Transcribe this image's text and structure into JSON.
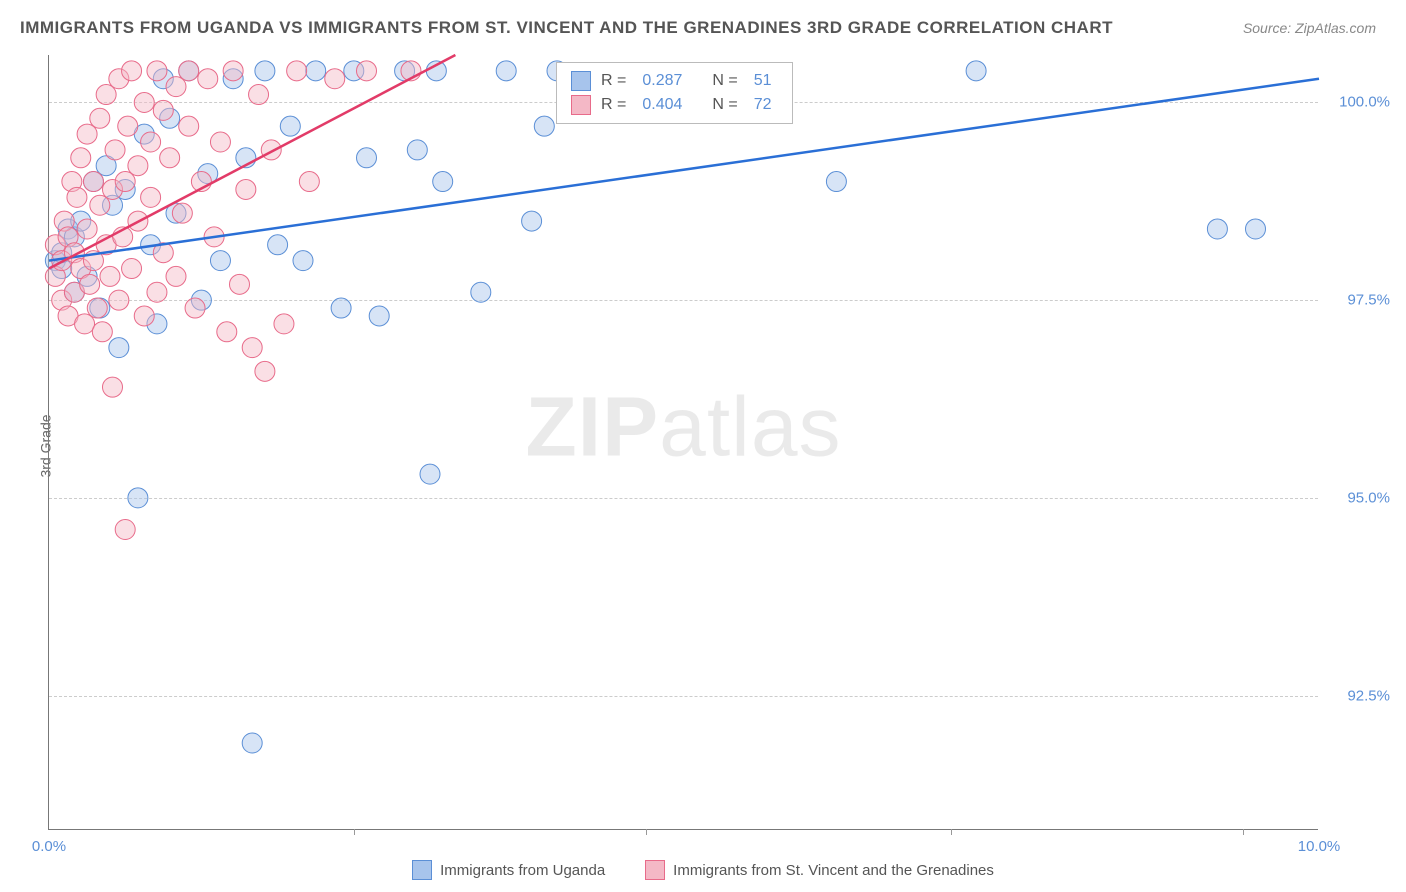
{
  "title": "IMMIGRANTS FROM UGANDA VS IMMIGRANTS FROM ST. VINCENT AND THE GRENADINES 3RD GRADE CORRELATION CHART",
  "source": "Source: ZipAtlas.com",
  "ylabel": "3rd Grade",
  "watermark_bold": "ZIP",
  "watermark_light": "atlas",
  "chart": {
    "type": "scatter",
    "background_color": "#ffffff",
    "grid_color": "#cccccc",
    "axis_color": "#777777",
    "tick_color": "#5b8fd6",
    "xlim": [
      0.0,
      10.0
    ],
    "ylim": [
      90.8,
      100.6
    ],
    "xticks": [
      0.0,
      10.0
    ],
    "xtick_labels": [
      "0.0%",
      "10.0%"
    ],
    "yticks": [
      92.5,
      95.0,
      97.5,
      100.0
    ],
    "ytick_labels": [
      "92.5%",
      "95.0%",
      "97.5%",
      "100.0%"
    ],
    "xgrid_minor": [
      2.4,
      4.7,
      7.1,
      9.4
    ],
    "marker_radius": 10,
    "marker_opacity": 0.45,
    "label_fontsize": 15,
    "title_fontsize": 17,
    "series": [
      {
        "key": "uganda",
        "label": "Immigrants from Uganda",
        "color_fill": "#a7c4ec",
        "color_stroke": "#5b8fd6",
        "R": "0.287",
        "N": "51",
        "trend": {
          "x1": 0.0,
          "y1": 98.0,
          "x2": 10.0,
          "y2": 100.3,
          "color": "#2a6fd6",
          "width": 2.5
        },
        "points": [
          [
            0.05,
            98.0
          ],
          [
            0.1,
            97.9
          ],
          [
            0.1,
            98.1
          ],
          [
            0.15,
            98.4
          ],
          [
            0.2,
            97.6
          ],
          [
            0.2,
            98.3
          ],
          [
            0.25,
            98.5
          ],
          [
            0.3,
            97.8
          ],
          [
            0.35,
            99.0
          ],
          [
            0.4,
            97.4
          ],
          [
            0.45,
            99.2
          ],
          [
            0.5,
            98.7
          ],
          [
            0.55,
            96.9
          ],
          [
            0.6,
            98.9
          ],
          [
            0.7,
            95.0
          ],
          [
            0.75,
            99.6
          ],
          [
            0.8,
            98.2
          ],
          [
            0.85,
            97.2
          ],
          [
            0.9,
            100.3
          ],
          [
            0.95,
            99.8
          ],
          [
            1.0,
            98.6
          ],
          [
            1.1,
            100.4
          ],
          [
            1.2,
            97.5
          ],
          [
            1.25,
            99.1
          ],
          [
            1.35,
            98.0
          ],
          [
            1.45,
            100.3
          ],
          [
            1.55,
            99.3
          ],
          [
            1.6,
            91.9
          ],
          [
            1.7,
            100.4
          ],
          [
            1.8,
            98.2
          ],
          [
            1.9,
            99.7
          ],
          [
            2.0,
            98.0
          ],
          [
            2.1,
            100.4
          ],
          [
            2.3,
            97.4
          ],
          [
            2.4,
            100.4
          ],
          [
            2.5,
            99.3
          ],
          [
            2.6,
            97.3
          ],
          [
            2.8,
            100.4
          ],
          [
            2.9,
            99.4
          ],
          [
            3.0,
            95.3
          ],
          [
            3.05,
            100.4
          ],
          [
            3.1,
            99.0
          ],
          [
            3.4,
            97.6
          ],
          [
            3.6,
            100.4
          ],
          [
            3.8,
            98.5
          ],
          [
            3.9,
            99.7
          ],
          [
            4.0,
            100.4
          ],
          [
            6.2,
            99.0
          ],
          [
            7.3,
            100.4
          ],
          [
            9.2,
            98.4
          ],
          [
            9.5,
            98.4
          ]
        ]
      },
      {
        "key": "stvincent",
        "label": "Immigrants from St. Vincent and the Grenadines",
        "color_fill": "#f4b8c6",
        "color_stroke": "#e86b8a",
        "R": "0.404",
        "N": "72",
        "trend": {
          "x1": 0.0,
          "y1": 97.9,
          "x2": 3.2,
          "y2": 100.6,
          "color": "#e23b68",
          "width": 2.5
        },
        "points": [
          [
            0.05,
            97.8
          ],
          [
            0.05,
            98.2
          ],
          [
            0.1,
            97.5
          ],
          [
            0.1,
            98.0
          ],
          [
            0.12,
            98.5
          ],
          [
            0.15,
            97.3
          ],
          [
            0.15,
            98.3
          ],
          [
            0.18,
            99.0
          ],
          [
            0.2,
            97.6
          ],
          [
            0.2,
            98.1
          ],
          [
            0.22,
            98.8
          ],
          [
            0.25,
            97.9
          ],
          [
            0.25,
            99.3
          ],
          [
            0.28,
            97.2
          ],
          [
            0.3,
            98.4
          ],
          [
            0.3,
            99.6
          ],
          [
            0.32,
            97.7
          ],
          [
            0.35,
            98.0
          ],
          [
            0.35,
            99.0
          ],
          [
            0.38,
            97.4
          ],
          [
            0.4,
            98.7
          ],
          [
            0.4,
            99.8
          ],
          [
            0.42,
            97.1
          ],
          [
            0.45,
            98.2
          ],
          [
            0.45,
            100.1
          ],
          [
            0.48,
            97.8
          ],
          [
            0.5,
            96.4
          ],
          [
            0.5,
            98.9
          ],
          [
            0.52,
            99.4
          ],
          [
            0.55,
            97.5
          ],
          [
            0.55,
            100.3
          ],
          [
            0.58,
            98.3
          ],
          [
            0.6,
            94.6
          ],
          [
            0.6,
            99.0
          ],
          [
            0.62,
            99.7
          ],
          [
            0.65,
            97.9
          ],
          [
            0.65,
            100.4
          ],
          [
            0.7,
            98.5
          ],
          [
            0.7,
            99.2
          ],
          [
            0.75,
            97.3
          ],
          [
            0.75,
            100.0
          ],
          [
            0.8,
            98.8
          ],
          [
            0.8,
            99.5
          ],
          [
            0.85,
            97.6
          ],
          [
            0.85,
            100.4
          ],
          [
            0.9,
            98.1
          ],
          [
            0.9,
            99.9
          ],
          [
            0.95,
            99.3
          ],
          [
            1.0,
            97.8
          ],
          [
            1.0,
            100.2
          ],
          [
            1.05,
            98.6
          ],
          [
            1.1,
            99.7
          ],
          [
            1.1,
            100.4
          ],
          [
            1.15,
            97.4
          ],
          [
            1.2,
            99.0
          ],
          [
            1.25,
            100.3
          ],
          [
            1.3,
            98.3
          ],
          [
            1.35,
            99.5
          ],
          [
            1.4,
            97.1
          ],
          [
            1.45,
            100.4
          ],
          [
            1.5,
            97.7
          ],
          [
            1.55,
            98.9
          ],
          [
            1.6,
            96.9
          ],
          [
            1.65,
            100.1
          ],
          [
            1.7,
            96.6
          ],
          [
            1.75,
            99.4
          ],
          [
            1.85,
            97.2
          ],
          [
            1.95,
            100.4
          ],
          [
            2.05,
            99.0
          ],
          [
            2.25,
            100.3
          ],
          [
            2.5,
            100.4
          ],
          [
            2.85,
            100.4
          ]
        ]
      }
    ]
  },
  "bottom_legend": [
    {
      "label": "Immigrants from Uganda",
      "fill": "#a7c4ec",
      "stroke": "#5b8fd6"
    },
    {
      "label": "Immigrants from St. Vincent and the Grenadines",
      "fill": "#f4b8c6",
      "stroke": "#e86b8a"
    }
  ],
  "legend_box": {
    "rows": [
      {
        "fill": "#a7c4ec",
        "stroke": "#5b8fd6",
        "R_label": "R  =",
        "R": "0.287",
        "N_label": "N  =",
        "N": "51"
      },
      {
        "fill": "#f4b8c6",
        "stroke": "#e86b8a",
        "R_label": "R  =",
        "R": "0.404",
        "N_label": "N  =",
        "N": "72"
      }
    ]
  }
}
